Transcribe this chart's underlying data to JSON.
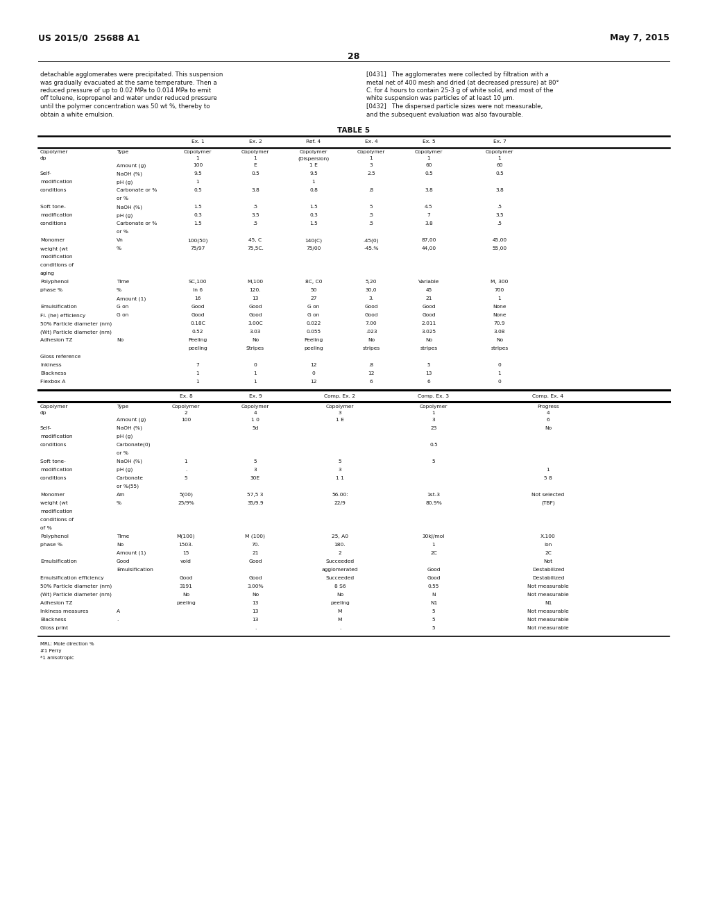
{
  "page_number": "28",
  "left_header": "US 2015/0  25688 A1",
  "right_header": "May 7, 2015",
  "left_body_lines": [
    "detachable agglomerates were precipitated. This suspension",
    "was gradually evacuated at the same temperature. Then a",
    "reduced pressure of up to 0.02 MPa to 0.014 MPa to emit",
    "off toluene, isopropanol and water under reduced pressure",
    "until the polymer concentration was 50 wt %, thereby to",
    "obtain a white emulsion."
  ],
  "right_body_lines": [
    "[0431]   The agglomerates were collected by filtration with a",
    "metal net of 400 mesh and dried (at decreased pressure) at 80°",
    "C. for 4 hours to contain 25-3 g of white solid, and most of the",
    "white suspension was particles of at least 10 μm.",
    "[0432]   The dispersed particle sizes were not measurable,",
    "and the subsequent evaluation was also favourable."
  ],
  "table_title": "TABLE 5",
  "bg": "#ffffff",
  "fg": "#000000",
  "figw": 10.2,
  "figh": 13.2,
  "dpi": 100
}
